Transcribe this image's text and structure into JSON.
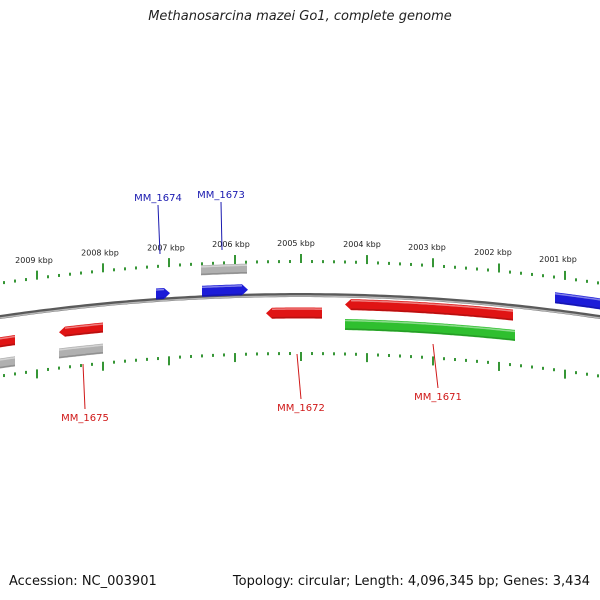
{
  "title": "Methanosarcina mazei Go1, complete genome",
  "footer": {
    "accession": "Accession: NC_003901",
    "summary": "Topology: circular; Length: 4,096,345 bp; Genes: 3,434"
  },
  "colors": {
    "backbone": "#8a8a8a",
    "tick": "#1f8a1f",
    "forward_cds": "#1c1cd8",
    "reverse_cds": "#e01414",
    "forward_gene": "#b0b0b0",
    "reverse_gene": "#2fbf2f",
    "forward_label": "#1a1ab0",
    "reverse_label": "#d01818",
    "tick_label": "#222222"
  },
  "ticks": {
    "labels": [
      "2009 kbp",
      "2008 kbp",
      "2007 kbp",
      "2006 kbp",
      "2005 kbp",
      "2004 kbp",
      "2003 kbp",
      "2002 kbp",
      "2001 kbp"
    ]
  },
  "genes": [
    {
      "label": "MM_1674",
      "strand": "forward",
      "feature": "CDS"
    },
    {
      "label": "MM_1673",
      "strand": "forward",
      "feature": "CDS"
    },
    {
      "label": "MM_1675",
      "strand": "reverse",
      "feature": "CDS"
    },
    {
      "label": "MM_1672",
      "strand": "reverse",
      "feature": "CDS"
    },
    {
      "label": "MM_1671",
      "strand": "reverse",
      "feature": "CDS"
    }
  ]
}
